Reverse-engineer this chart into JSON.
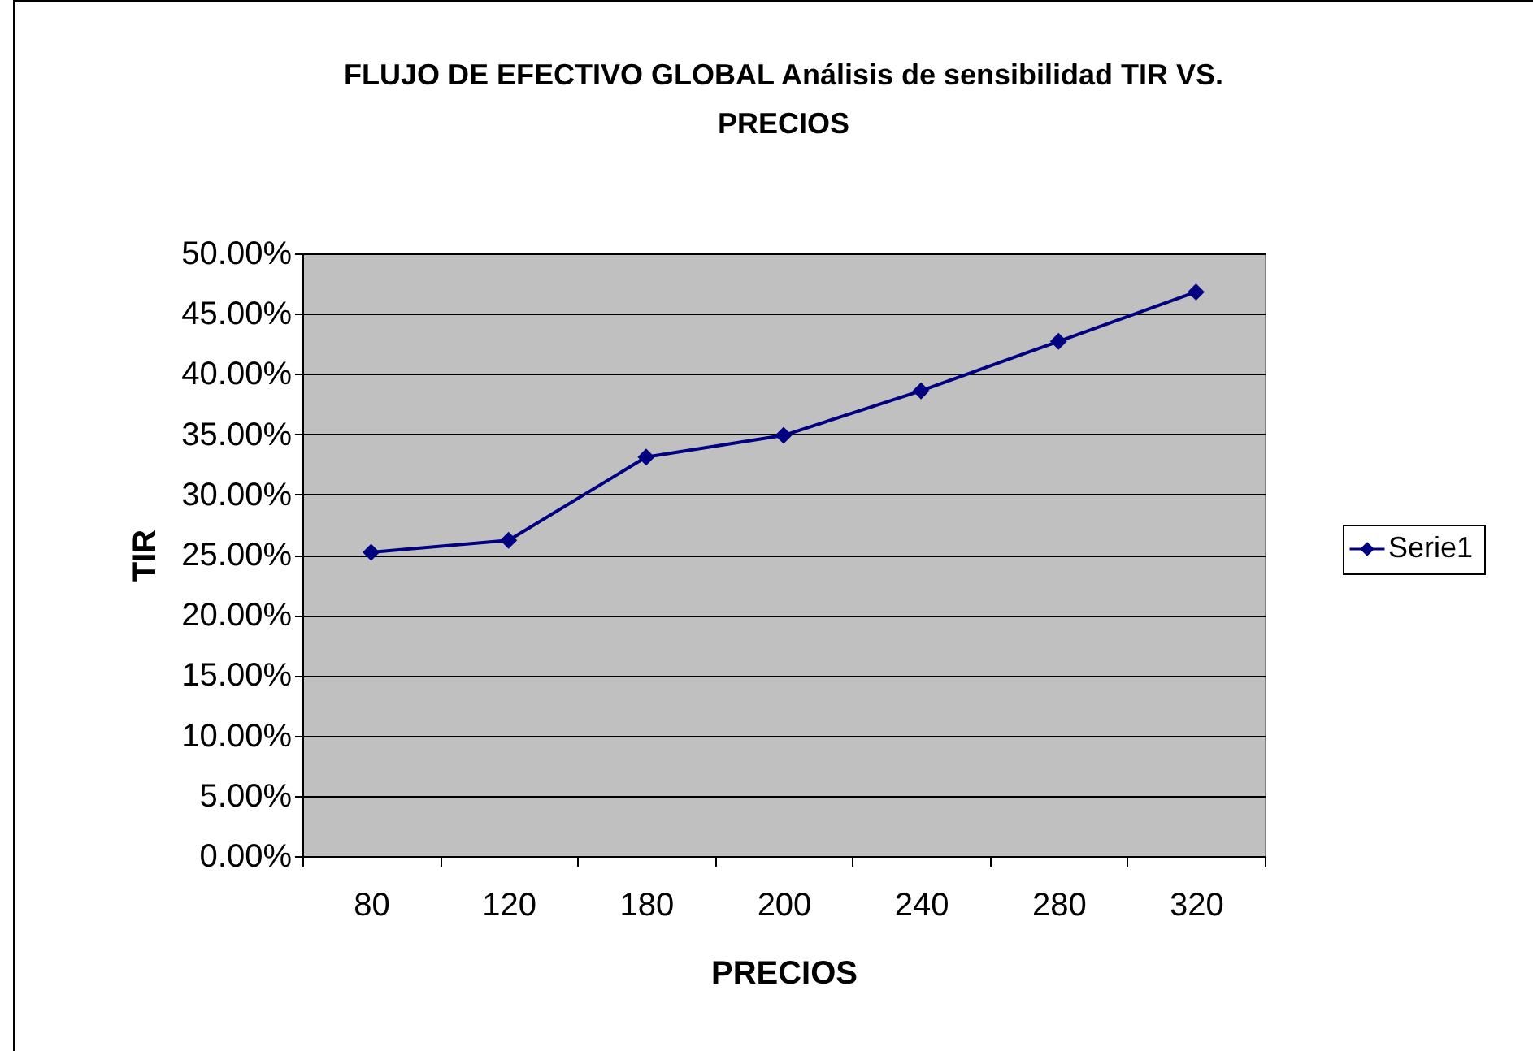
{
  "chart_data": {
    "type": "line",
    "title": "FLUJO DE EFECTIVO GLOBAL Análisis de sensibilidad TIR VS. PRECIOS",
    "xlabel": "PRECIOS",
    "ylabel": "TIR",
    "categories": [
      "80",
      "120",
      "180",
      "200",
      "240",
      "280",
      "320"
    ],
    "series": [
      {
        "name": "Serie1",
        "color": "#000080",
        "values": [
          25.2,
          26.2,
          33.1,
          34.9,
          38.6,
          42.7,
          46.8
        ]
      }
    ],
    "ylim": [
      0,
      50
    ],
    "yticks": [
      {
        "value": 0,
        "label": "0.00%"
      },
      {
        "value": 5,
        "label": "5.00%"
      },
      {
        "value": 10,
        "label": "10.00%"
      },
      {
        "value": 15,
        "label": "15.00%"
      },
      {
        "value": 20,
        "label": "20.00%"
      },
      {
        "value": 25,
        "label": "25.00%"
      },
      {
        "value": 30,
        "label": "30.00%"
      },
      {
        "value": 35,
        "label": "35.00%"
      },
      {
        "value": 40,
        "label": "40.00%"
      },
      {
        "value": 45,
        "label": "45.00%"
      },
      {
        "value": 50,
        "label": "50.00%"
      }
    ],
    "grid": "y",
    "legend": "right",
    "marker": "diamond",
    "line_style": "solid"
  }
}
